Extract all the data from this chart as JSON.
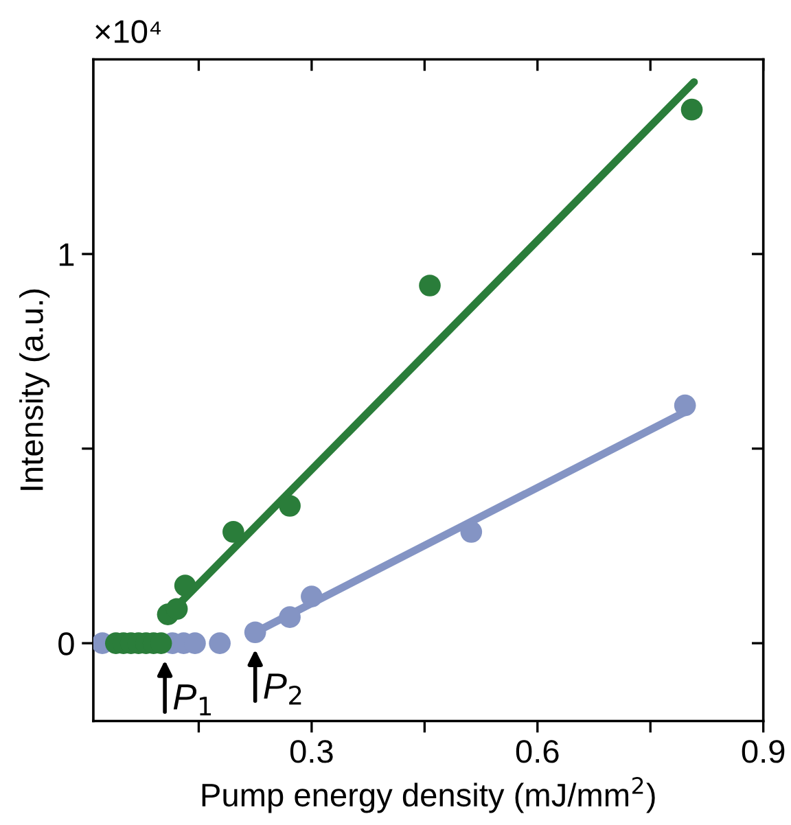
{
  "chart_data": {
    "type": "scatter",
    "xlabel": "Pump energy density (mJ/mm$^{2}$)",
    "ylabel": "Intensity (a.u.)",
    "xlim": [
      0.01,
      0.9
    ],
    "ylim": [
      -0.2,
      1.5
    ],
    "xticks": [
      {
        "value": 0.15,
        "label": null
      },
      0.3,
      {
        "value": 0.45,
        "label": null
      },
      0.6,
      {
        "value": 0.75,
        "label": null
      },
      0.9
    ],
    "yticks": [
      0,
      {
        "value": 0.5,
        "label": null
      },
      1
    ],
    "grid": false,
    "legend": false,
    "marker": "circle",
    "series": [
      {
        "color": "#8494c4",
        "x": [
          0.022,
          0.115,
          0.13,
          0.145,
          0.178,
          0.225,
          0.271,
          0.3,
          0.512,
          0.796
        ],
        "values": [
          0,
          0,
          0,
          0,
          0,
          0.028,
          0.067,
          0.12,
          0.286,
          0.611
        ]
      },
      {
        "type": "line",
        "color": "#8494c4",
        "marker": "none",
        "x": [
          0.225,
          0.796
        ],
        "values": [
          0.028,
          0.594
        ]
      },
      {
        "color": "#2a7d3a",
        "x": [
          0.04,
          0.05,
          0.06,
          0.07,
          0.08,
          0.09,
          0.1,
          0.109,
          0.121,
          0.132,
          0.196,
          0.271,
          0.457,
          0.805
        ],
        "values": [
          0,
          0,
          0,
          0,
          0,
          0,
          0,
          0.074,
          0.088,
          0.148,
          0.286,
          0.353,
          0.919,
          1.371
        ]
      },
      {
        "type": "line",
        "color": "#2a7d3a",
        "marker": "none",
        "x": [
          0.105,
          0.808
        ],
        "values": [
          0.064,
          1.442
        ]
      }
    ],
    "annotations": [
      "×10⁴",
      {
        "text": "P$_{1}$",
        "x": 0.105,
        "y": 0
      },
      {
        "text": "P$_{2}$",
        "x": 0.225,
        "y": 0.028
      }
    ]
  }
}
